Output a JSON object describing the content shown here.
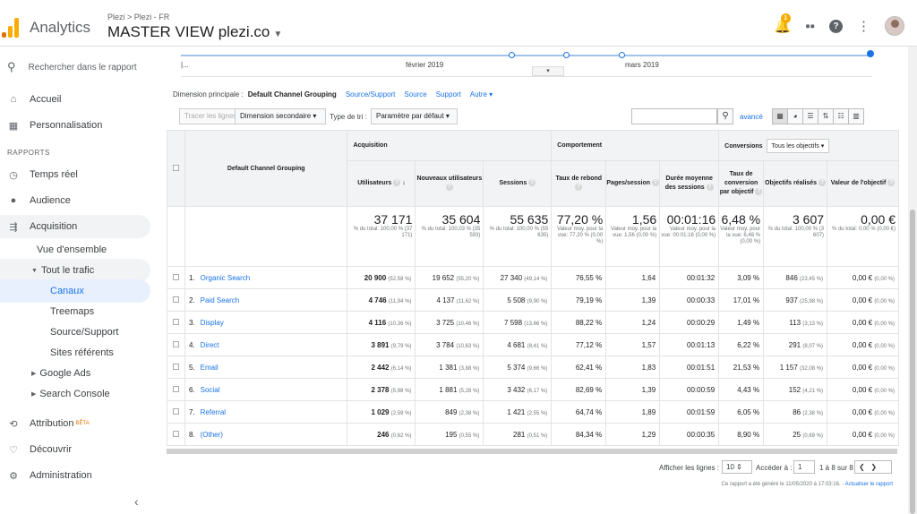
{
  "header": {
    "app_name": "Analytics",
    "breadcrumb": "Plezi > Plezi - FR",
    "view_name": "MASTER VIEW plezi.co",
    "notification_count": "1",
    "help_glyph": "?"
  },
  "sidebar": {
    "search_placeholder": "Rechercher dans le rapport",
    "home": "Accueil",
    "customization": "Personnalisation",
    "reports_label": "RAPPORTS",
    "realtime": "Temps réel",
    "audience": "Audience",
    "acquisition": "Acquisition",
    "overview": "Vue d'ensemble",
    "all_traffic": "Tout le trafic",
    "channels": "Canaux",
    "treemaps": "Treemaps",
    "source_medium": "Source/Support",
    "referrals": "Sites référents",
    "google_ads": "Google Ads",
    "search_console": "Search Console",
    "attribution": "Attribution",
    "beta": "BÊTA",
    "discover": "Découvrir",
    "admin": "Administration"
  },
  "timeline": {
    "label_feb": "février 2019",
    "label_mar": "mars 2019",
    "start_glyph": "|...",
    "handle_glyph": "▾"
  },
  "dimension": {
    "label": "Dimension principale :",
    "active": "Default Channel Grouping",
    "links": [
      "Source/Support",
      "Source",
      "Support",
      "Autre ▾"
    ]
  },
  "controls": {
    "plot_rows": "Tracer les lignes",
    "secondary_dim": "Dimension secondaire",
    "sort_label": "Type de tri :",
    "sort_value": "Paramètre par défaut",
    "advanced": "avancé"
  },
  "table": {
    "dim_header": "Default Channel Grouping",
    "group_acquisition": "Acquisition",
    "group_behavior": "Comportement",
    "group_conversions": "Conversions",
    "goal_select": "Tous les objectifs",
    "columns": {
      "users": "Utilisateurs",
      "new_users": "Nouveaux utilisateurs",
      "sessions": "Sessions",
      "bounce": "Taux de rebond",
      "pages": "Pages/session",
      "duration": "Durée moyenne des sessions",
      "conv_rate": "Taux de conversion par objectif",
      "goals": "Objectifs réalisés",
      "goal_value": "Valeur de l'objectif"
    },
    "totals": {
      "users": "37 171",
      "users_sub": "% du total: 100,00 % (37 171)",
      "new_users": "35 604",
      "new_users_sub": "% du total: 100,03 % (35 593)",
      "sessions": "55 635",
      "sessions_sub": "% du total: 100,00 % (55 635)",
      "bounce": "77,20 %",
      "bounce_sub": "Valeur moy. pour la vue: 77,20 % (0,00 %)",
      "pages": "1,56",
      "pages_sub": "Valeur moy. pour la vue: 1,56 (0,00 %)",
      "duration": "00:01:16",
      "duration_sub": "Valeur moy. pour la vue: 00:01:16 (0,00 %)",
      "conv": "6,48 %",
      "conv_sub": "Valeur moy. pour la vue: 6,48 % (0,00 %)",
      "goals": "3 607",
      "goals_sub": "% du total: 100,00 % (3 607)",
      "value": "0,00 €",
      "value_sub": "% du total: 0,00 % (0,00 €)"
    },
    "rows": [
      {
        "idx": "1.",
        "channel": "Organic Search",
        "users": "20 900",
        "users_pct": "(52,58 %)",
        "new": "19 652",
        "new_pct": "(55,20 %)",
        "sessions": "27 340",
        "sessions_pct": "(49,14 %)",
        "bounce": "76,55 %",
        "pages": "1,64",
        "duration": "00:01:32",
        "conv": "3,09 %",
        "goals": "846",
        "goals_pct": "(23,45 %)",
        "value": "0,00 €",
        "value_pct": "(0,00 %)"
      },
      {
        "idx": "2.",
        "channel": "Paid Search",
        "users": "4 746",
        "users_pct": "(11,94 %)",
        "new": "4 137",
        "new_pct": "(11,62 %)",
        "sessions": "5 508",
        "sessions_pct": "(9,90 %)",
        "bounce": "79,19 %",
        "pages": "1,39",
        "duration": "00:00:33",
        "conv": "17,01 %",
        "goals": "937",
        "goals_pct": "(25,98 %)",
        "value": "0,00 €",
        "value_pct": "(0,00 %)"
      },
      {
        "idx": "3.",
        "channel": "Display",
        "users": "4 116",
        "users_pct": "(10,36 %)",
        "new": "3 725",
        "new_pct": "(10,46 %)",
        "sessions": "7 598",
        "sessions_pct": "(13,66 %)",
        "bounce": "88,22 %",
        "pages": "1,24",
        "duration": "00:00:29",
        "conv": "1,49 %",
        "goals": "113",
        "goals_pct": "(3,13 %)",
        "value": "0,00 €",
        "value_pct": "(0,00 %)"
      },
      {
        "idx": "4.",
        "channel": "Direct",
        "users": "3 891",
        "users_pct": "(9,79 %)",
        "new": "3 784",
        "new_pct": "(10,63 %)",
        "sessions": "4 681",
        "sessions_pct": "(8,41 %)",
        "bounce": "77,12 %",
        "pages": "1,57",
        "duration": "00:01:13",
        "conv": "6,22 %",
        "goals": "291",
        "goals_pct": "(8,07 %)",
        "value": "0,00 €",
        "value_pct": "(0,00 %)"
      },
      {
        "idx": "5.",
        "channel": "Email",
        "users": "2 442",
        "users_pct": "(6,14 %)",
        "new": "1 381",
        "new_pct": "(3,88 %)",
        "sessions": "5 374",
        "sessions_pct": "(9,66 %)",
        "bounce": "62,41 %",
        "pages": "1,83",
        "duration": "00:01:51",
        "conv": "21,53 %",
        "goals": "1 157",
        "goals_pct": "(32,08 %)",
        "value": "0,00 €",
        "value_pct": "(0,00 %)"
      },
      {
        "idx": "6.",
        "channel": "Social",
        "users": "2 378",
        "users_pct": "(5,98 %)",
        "new": "1 881",
        "new_pct": "(5,28 %)",
        "sessions": "3 432",
        "sessions_pct": "(6,17 %)",
        "bounce": "82,69 %",
        "pages": "1,39",
        "duration": "00:00:59",
        "conv": "4,43 %",
        "goals": "152",
        "goals_pct": "(4,21 %)",
        "value": "0,00 €",
        "value_pct": "(0,00 %)"
      },
      {
        "idx": "7.",
        "channel": "Referral",
        "users": "1 029",
        "users_pct": "(2,59 %)",
        "new": "849",
        "new_pct": "(2,38 %)",
        "sessions": "1 421",
        "sessions_pct": "(2,55 %)",
        "bounce": "64,74 %",
        "pages": "1,89",
        "duration": "00:01:59",
        "conv": "6,05 %",
        "goals": "86",
        "goals_pct": "(2,38 %)",
        "value": "0,00 €",
        "value_pct": "(0,00 %)"
      },
      {
        "idx": "8.",
        "channel": "(Other)",
        "users": "246",
        "users_pct": "(0,62 %)",
        "new": "195",
        "new_pct": "(0,55 %)",
        "sessions": "281",
        "sessions_pct": "(0,51 %)",
        "bounce": "84,34 %",
        "pages": "1,29",
        "duration": "00:00:35",
        "conv": "8,90 %",
        "goals": "25",
        "goals_pct": "(0,69 %)",
        "value": "0,00 €",
        "value_pct": "(0,00 %)"
      }
    ]
  },
  "pager": {
    "show_rows": "Afficher les lignes :",
    "rows_value": "10",
    "goto": "Accéder à :",
    "goto_value": "1",
    "range": "1 à 8 sur 8"
  },
  "footer": {
    "note": "Ce rapport a été généré le 11/05/2020 à 17:03:16. -",
    "refresh": "Actualiser le rapport"
  },
  "colors": {
    "accent": "#1a73e8",
    "logo_orange": "#f9ab00",
    "logo_dark": "#e37400"
  }
}
